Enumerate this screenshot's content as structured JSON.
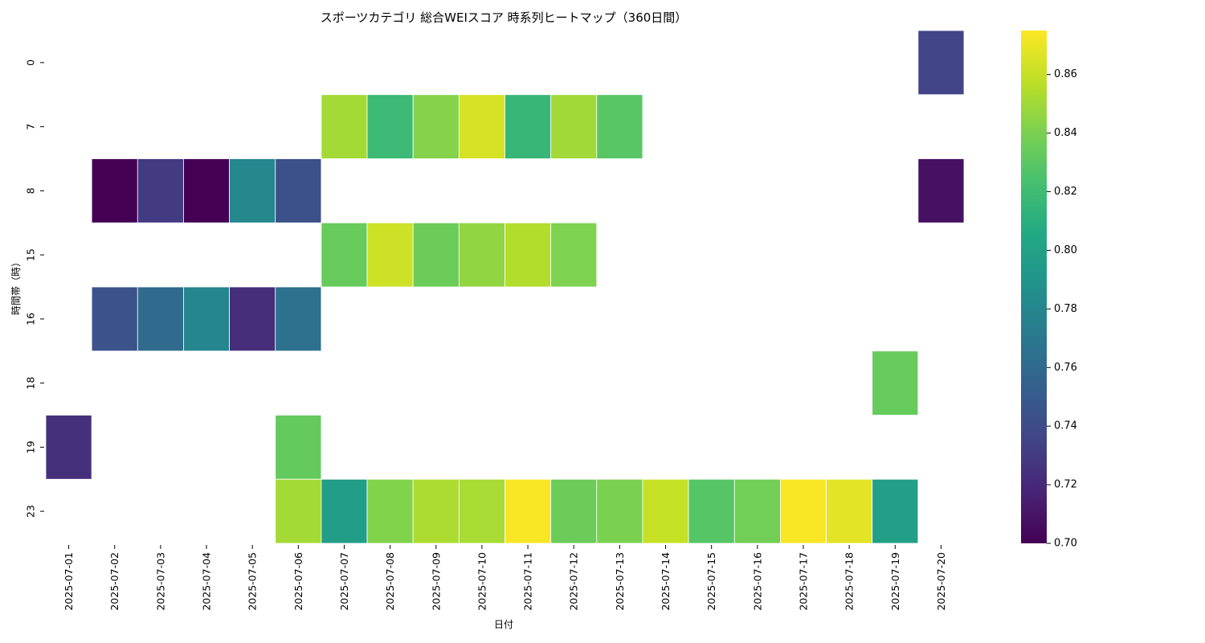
{
  "chart_data": {
    "type": "heatmap",
    "title": "スポーツカテゴリ 総合WEIスコア 時系列ヒートマップ（360日間）",
    "xlabel": "日付",
    "ylabel": "時間帯（時）",
    "colormap": "viridis",
    "vmin": 0.7,
    "vmax": 0.875,
    "colorbar_ticks": [
      "0.70",
      "0.72",
      "0.74",
      "0.76",
      "0.78",
      "0.80",
      "0.82",
      "0.84",
      "0.86"
    ],
    "x_categories": [
      "2025-07-01",
      "2025-07-02",
      "2025-07-03",
      "2025-07-04",
      "2025-07-05",
      "2025-07-06",
      "2025-07-07",
      "2025-07-08",
      "2025-07-09",
      "2025-07-10",
      "2025-07-11",
      "2025-07-12",
      "2025-07-13",
      "2025-07-14",
      "2025-07-15",
      "2025-07-16",
      "2025-07-17",
      "2025-07-18",
      "2025-07-19",
      "2025-07-20"
    ],
    "y_categories": [
      "0",
      "7",
      "8",
      "15",
      "16",
      "18",
      "19",
      "23"
    ],
    "values": [
      [
        null,
        null,
        null,
        null,
        null,
        null,
        null,
        null,
        null,
        null,
        null,
        null,
        null,
        null,
        null,
        null,
        null,
        null,
        null,
        0.735
      ],
      [
        null,
        null,
        null,
        null,
        null,
        null,
        0.851,
        0.818,
        0.843,
        0.864,
        0.816,
        0.85,
        0.829,
        null,
        null,
        null,
        null,
        null,
        null,
        null
      ],
      [
        null,
        0.7,
        0.73,
        0.7,
        0.781,
        0.743,
        null,
        null,
        null,
        null,
        null,
        null,
        null,
        null,
        null,
        null,
        null,
        null,
        null,
        0.708
      ],
      [
        null,
        null,
        null,
        null,
        null,
        null,
        0.834,
        0.862,
        0.835,
        0.846,
        0.855,
        0.841,
        null,
        null,
        null,
        null,
        null,
        null,
        null,
        null
      ],
      [
        null,
        0.744,
        0.761,
        0.78,
        0.723,
        0.765,
        null,
        null,
        null,
        null,
        null,
        null,
        null,
        null,
        null,
        null,
        null,
        null,
        null,
        null
      ],
      [
        null,
        null,
        null,
        null,
        null,
        null,
        null,
        null,
        null,
        null,
        null,
        null,
        null,
        null,
        null,
        null,
        null,
        null,
        0.834,
        null
      ],
      [
        0.724,
        null,
        null,
        null,
        null,
        0.833,
        null,
        null,
        null,
        null,
        null,
        null,
        null,
        null,
        null,
        null,
        null,
        null,
        null,
        null
      ],
      [
        null,
        null,
        null,
        null,
        null,
        0.851,
        0.797,
        0.842,
        0.853,
        0.852,
        0.874,
        0.835,
        0.84,
        0.86,
        0.828,
        0.837,
        0.874,
        0.868,
        0.799,
        null
      ]
    ]
  }
}
